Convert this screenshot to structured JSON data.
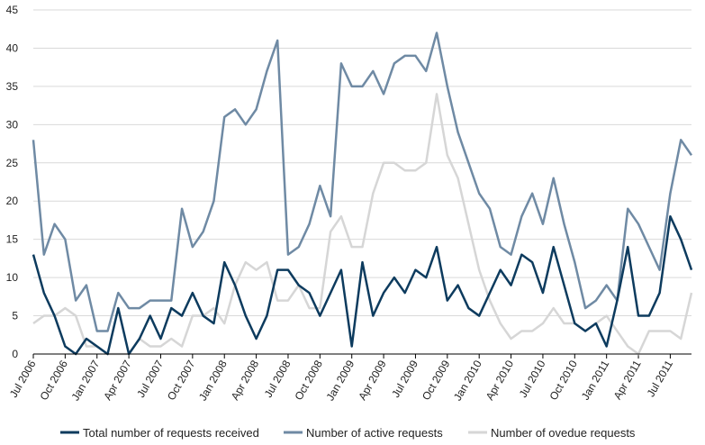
{
  "chart_data": {
    "type": "line",
    "title": "",
    "xlabel": "",
    "ylabel": "",
    "ylim": [
      0,
      45
    ],
    "yticks": [
      "0",
      "5",
      "10",
      "15",
      "20",
      "25",
      "30",
      "35",
      "40",
      "45"
    ],
    "x_tick_labels": [
      "Jul 2006",
      "Oct 2006",
      "Jan 2007",
      "Apr 2007",
      "Jul 2007",
      "Oct 2007",
      "Jan 2008",
      "Apr 2008",
      "Jul 2008",
      "Oct 2008",
      "Jan 2009",
      "Apr 2009",
      "Jul 2009",
      "Oct 2009",
      "Jan 2010",
      "Apr 2010",
      "Jul 2010",
      "Oct 2010",
      "Jan 2011",
      "Apr 2011",
      "Jul 2011"
    ],
    "grid": "horizontal",
    "legend_position": "bottom",
    "x": [
      "Jul 2006",
      "Aug 2006",
      "Sep 2006",
      "Oct 2006",
      "Nov 2006",
      "Dec 2006",
      "Jan 2007",
      "Feb 2007",
      "Mar 2007",
      "Apr 2007",
      "May 2007",
      "Jun 2007",
      "Jul 2007",
      "Aug 2007",
      "Sep 2007",
      "Oct 2007",
      "Nov 2007",
      "Dec 2007",
      "Jan 2008",
      "Feb 2008",
      "Mar 2008",
      "Apr 2008",
      "May 2008",
      "Jun 2008",
      "Jul 2008",
      "Aug 2008",
      "Sep 2008",
      "Oct 2008",
      "Nov 2008",
      "Dec 2008",
      "Jan 2009",
      "Feb 2009",
      "Mar 2009",
      "Apr 2009",
      "May 2009",
      "Jun 2009",
      "Jul 2009",
      "Aug 2009",
      "Sep 2009",
      "Oct 2009",
      "Nov 2009",
      "Dec 2009",
      "Jan 2010",
      "Feb 2010",
      "Mar 2010",
      "Apr 2010",
      "May 2010",
      "Jun 2010",
      "Jul 2010",
      "Aug 2010",
      "Sep 2010",
      "Oct 2010",
      "Nov 2010",
      "Dec 2010",
      "Jan 2011",
      "Feb 2011",
      "Mar 2011",
      "Apr 2011",
      "May 2011",
      "Jun 2011",
      "Jul 2011",
      "Aug 2011",
      "Sep 2011"
    ],
    "series": [
      {
        "name": "Total number of requests received",
        "color": "#0d3b5e",
        "values": [
          13,
          8,
          5,
          1,
          0,
          2,
          1,
          0,
          6,
          0,
          2,
          5,
          2,
          6,
          5,
          8,
          5,
          4,
          12,
          9,
          5,
          2,
          5,
          11,
          11,
          9,
          8,
          5,
          8,
          11,
          1,
          12,
          5,
          8,
          10,
          8,
          11,
          10,
          14,
          7,
          9,
          6,
          5,
          8,
          11,
          9,
          13,
          12,
          8,
          14,
          9,
          4,
          3,
          4,
          1,
          7,
          14,
          5,
          5,
          8,
          18,
          15,
          11
        ]
      },
      {
        "name": "Number of active requests",
        "color": "#6f8aa4",
        "values": [
          28,
          13,
          17,
          15,
          7,
          9,
          3,
          3,
          8,
          6,
          6,
          7,
          7,
          7,
          19,
          14,
          16,
          20,
          31,
          32,
          30,
          32,
          37,
          41,
          13,
          14,
          17,
          22,
          18,
          38,
          35,
          35,
          37,
          34,
          38,
          39,
          39,
          37,
          42,
          35,
          29,
          25,
          21,
          19,
          14,
          13,
          18,
          21,
          17,
          23,
          17,
          12,
          6,
          7,
          9,
          7,
          19,
          17,
          14,
          11,
          21,
          28,
          26
        ]
      },
      {
        "name": "Number of ovedue requests",
        "color": "#d6d6d6",
        "values": [
          4,
          5,
          5,
          6,
          5,
          1,
          1,
          0,
          0,
          0,
          2,
          1,
          1,
          2,
          1,
          5,
          5,
          6,
          4,
          9,
          12,
          11,
          12,
          7,
          7,
          9,
          6,
          6,
          16,
          18,
          14,
          14,
          21,
          25,
          25,
          24,
          24,
          25,
          34,
          26,
          23,
          17,
          11,
          7,
          4,
          2,
          3,
          3,
          4,
          6,
          4,
          4,
          3,
          4,
          5,
          3,
          1,
          0,
          3,
          3,
          3,
          2,
          8
        ]
      }
    ]
  }
}
